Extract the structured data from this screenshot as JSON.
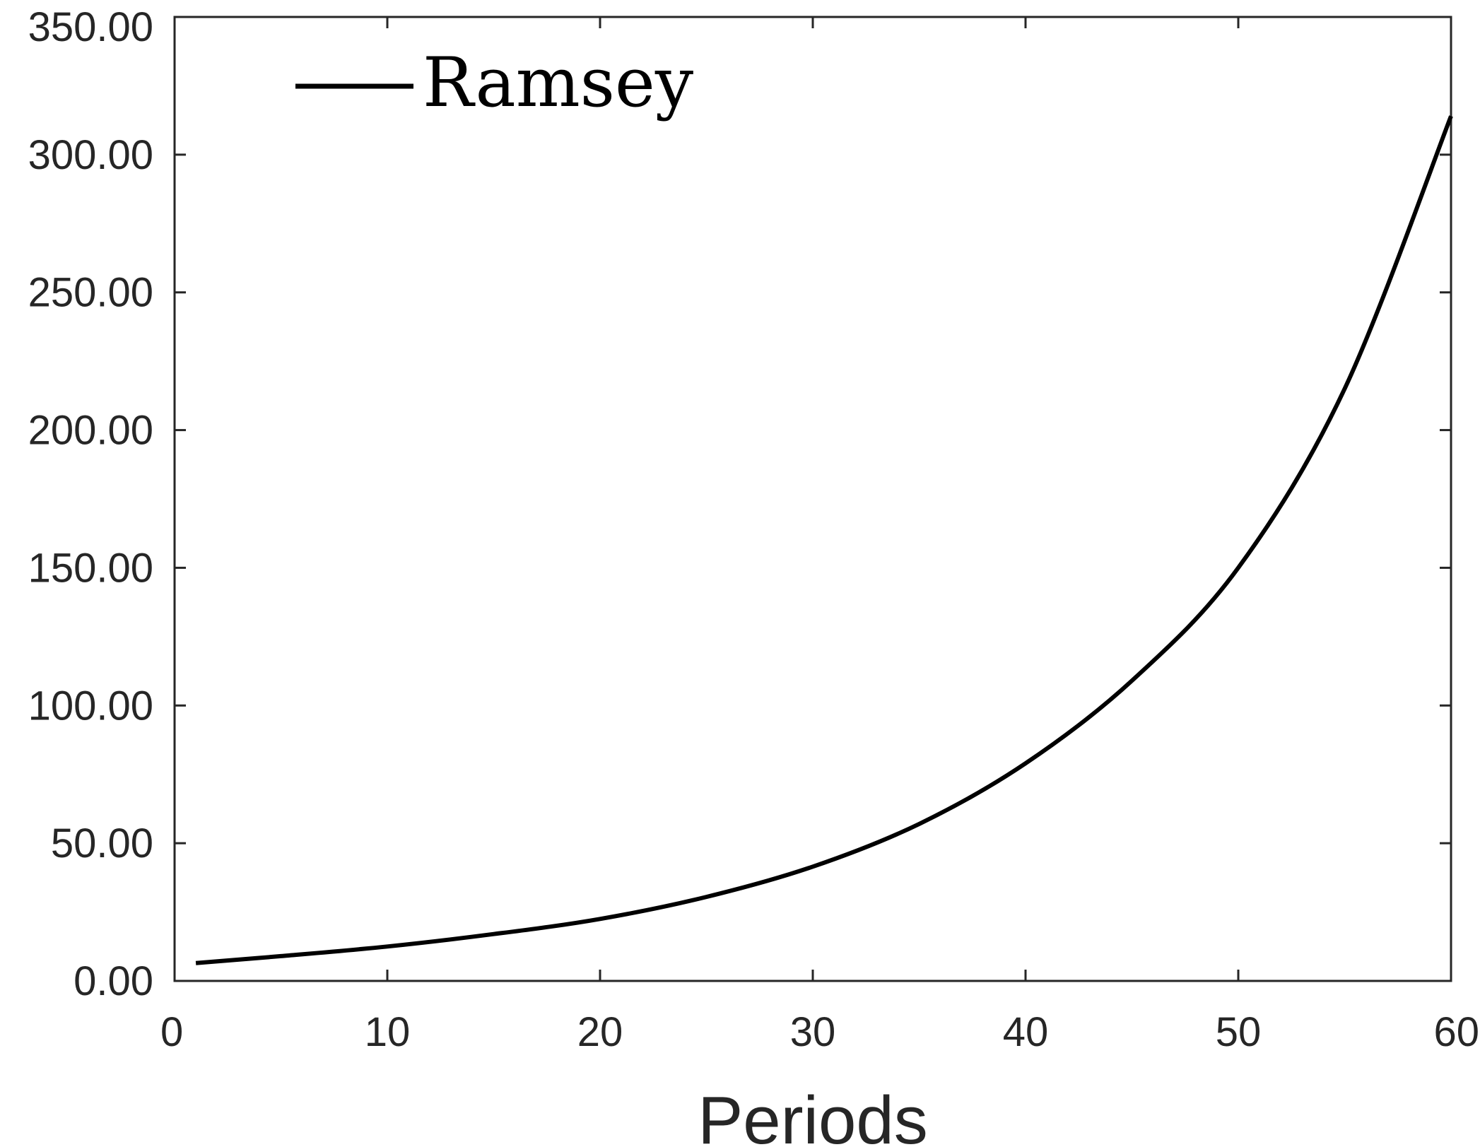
{
  "chart_data": {
    "type": "line",
    "title": "",
    "xlabel": "Periods",
    "ylabel": "",
    "xlim": [
      0,
      60
    ],
    "ylim": [
      0,
      350
    ],
    "xticks": [
      0,
      10,
      20,
      30,
      40,
      50,
      60
    ],
    "yticks": [
      0,
      50,
      100,
      150,
      200,
      250,
      300,
      350
    ],
    "xtick_labels": [
      "0",
      "10",
      "20",
      "30",
      "40",
      "50",
      "60"
    ],
    "ytick_labels": [
      "0.00",
      "50.00",
      "100.00",
      "150.00",
      "200.00",
      "250.00",
      "300.00",
      "350.00"
    ],
    "grid": false,
    "legend": {
      "position": "top-left",
      "entries": [
        "Ramsey"
      ]
    },
    "colors": {
      "line": "#000000",
      "axes": "#262626"
    },
    "series": [
      {
        "name": "Ramsey",
        "x": [
          1,
          5,
          10,
          15,
          20,
          25,
          30,
          35,
          40,
          45,
          50,
          55,
          60
        ],
        "values": [
          6.5,
          9,
          12.5,
          17,
          22.5,
          30.5,
          41.5,
          57,
          79,
          109,
          150,
          215,
          314
        ]
      }
    ]
  }
}
